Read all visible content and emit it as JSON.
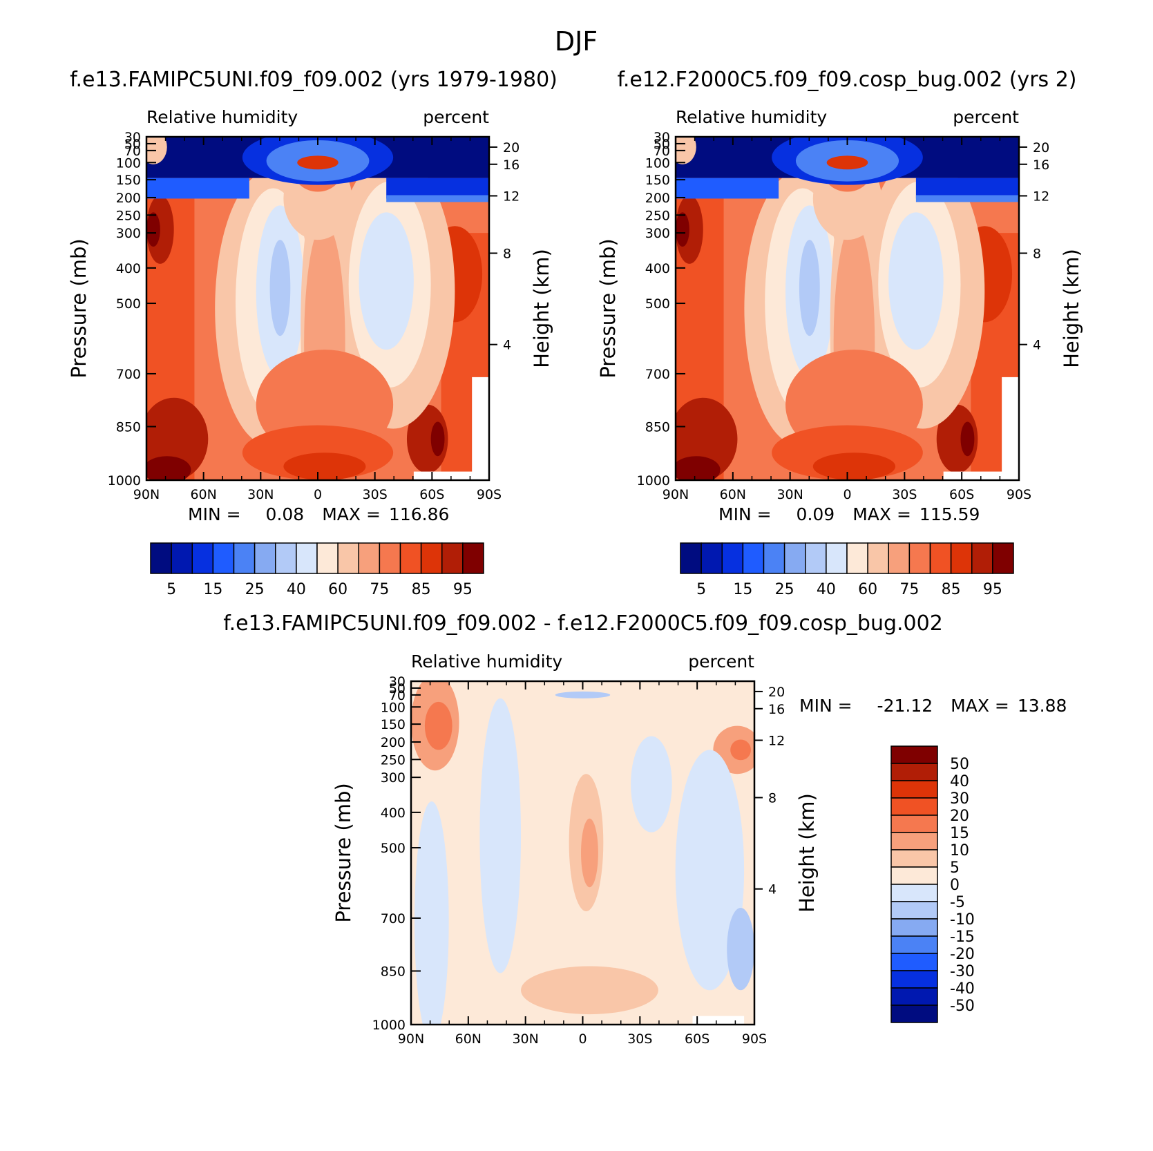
{
  "figure_title": "DJF",
  "chart_data": [
    {
      "type": "heatmap",
      "title": "f.e13.FAMIPC5UNI.f09_f09.002 (yrs 1979-1980)",
      "left_string": "Relative humidity",
      "right_string": "percent",
      "xlabel": "",
      "ylabel": "Pressure (mb)",
      "y2label": "Height (km)",
      "x_ticks": [
        "90N",
        "60N",
        "30N",
        "0",
        "30S",
        "60S",
        "90S"
      ],
      "y_ticks": [
        "30",
        "50",
        "70",
        "100",
        "150",
        "200",
        "250",
        "300",
        "400",
        "500",
        "700",
        "850",
        "1000"
      ],
      "y2_ticks": [
        "20",
        "16",
        "12",
        "8",
        "4"
      ],
      "stats": {
        "min_label": "MIN =",
        "min": "0.08",
        "max_label": "MAX =",
        "max": "116.86"
      },
      "colorbar": {
        "levels": [
          "5",
          "15",
          "25",
          "40",
          "60",
          "75",
          "85",
          "95"
        ],
        "colors": [
          "#000c80",
          "#0018b0",
          "#0630e0",
          "#1f5cff",
          "#4b82f5",
          "#86aaf2",
          "#b2caf7",
          "#d8e6fb",
          "#fde9d8",
          "#f9c6a8",
          "#f7a07c",
          "#f5784f",
          "#f05224",
          "#dd3408",
          "#b11e06",
          "#7f0000"
        ]
      }
    },
    {
      "type": "heatmap",
      "title": "f.e12.F2000C5.f09_f09.cosp_bug.002 (yrs 2)",
      "left_string": "Relative humidity",
      "right_string": "percent",
      "xlabel": "",
      "ylabel": "Pressure (mb)",
      "y2label": "Height (km)",
      "x_ticks": [
        "90N",
        "60N",
        "30N",
        "0",
        "30S",
        "60S",
        "90S"
      ],
      "y_ticks": [
        "30",
        "50",
        "70",
        "100",
        "150",
        "200",
        "250",
        "300",
        "400",
        "500",
        "700",
        "850",
        "1000"
      ],
      "y2_ticks": [
        "20",
        "16",
        "12",
        "8",
        "4"
      ],
      "stats": {
        "min_label": "MIN =",
        "min": "0.09",
        "max_label": "MAX =",
        "max": "115.59"
      },
      "colorbar": {
        "levels": [
          "5",
          "15",
          "25",
          "40",
          "60",
          "75",
          "85",
          "95"
        ],
        "colors": [
          "#000c80",
          "#0018b0",
          "#0630e0",
          "#1f5cff",
          "#4b82f5",
          "#86aaf2",
          "#b2caf7",
          "#d8e6fb",
          "#fde9d8",
          "#f9c6a8",
          "#f7a07c",
          "#f5784f",
          "#f05224",
          "#dd3408",
          "#b11e06",
          "#7f0000"
        ]
      }
    },
    {
      "type": "heatmap",
      "title": "f.e13.FAMIPC5UNI.f09_f09.002 - f.e12.F2000C5.f09_f09.cosp_bug.002",
      "left_string": "Relative humidity",
      "right_string": "percent",
      "xlabel": "",
      "ylabel": "Pressure (mb)",
      "y2label": "Height (km)",
      "x_ticks": [
        "90N",
        "60N",
        "30N",
        "0",
        "30S",
        "60S",
        "90S"
      ],
      "y_ticks": [
        "30",
        "50",
        "70",
        "100",
        "150",
        "200",
        "250",
        "300",
        "400",
        "500",
        "700",
        "850",
        "1000"
      ],
      "y2_ticks": [
        "20",
        "16",
        "12",
        "8",
        "4"
      ],
      "stats": {
        "min_label": "MIN =",
        "min": "-21.12",
        "max_label": "MAX =",
        "max": "13.88"
      },
      "colorbar": {
        "levels": [
          "50",
          "40",
          "30",
          "20",
          "15",
          "10",
          "5",
          "0",
          "-5",
          "-10",
          "-15",
          "-20",
          "-30",
          "-40",
          "-50"
        ],
        "colors": [
          "#7f0000",
          "#b11e06",
          "#dd3408",
          "#f05224",
          "#f5784f",
          "#f7a07c",
          "#f9c6a8",
          "#fde9d8",
          "#d8e6fb",
          "#b2caf7",
          "#86aaf2",
          "#4b82f5",
          "#1f5cff",
          "#0630e0",
          "#0018b0",
          "#000c80"
        ]
      }
    }
  ]
}
